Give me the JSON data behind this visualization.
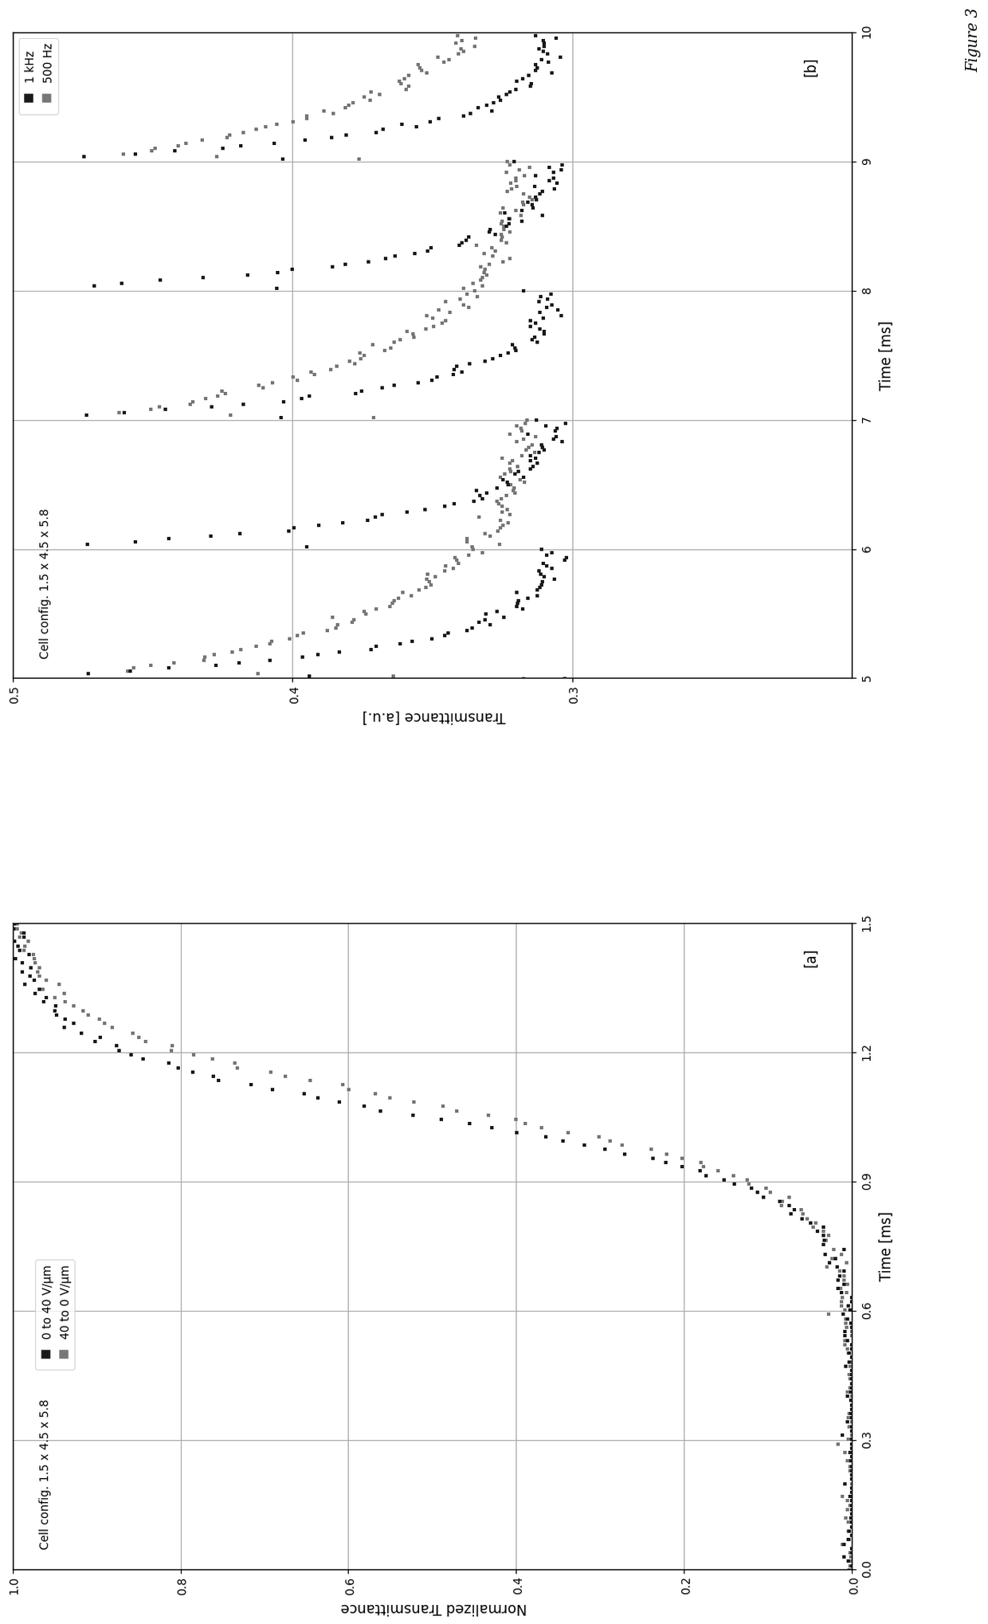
{
  "fig_width": 20.38,
  "fig_height": 12.4,
  "panel_a": {
    "xlabel": "Time [ms]",
    "ylabel": "Normalized Transmittance",
    "xlim": [
      0.0,
      1.5
    ],
    "ylim": [
      0.0,
      1.0
    ],
    "xticks": [
      0.0,
      0.3,
      0.6,
      0.9,
      1.2,
      1.5
    ],
    "yticks": [
      0.0,
      0.2,
      0.4,
      0.6,
      0.8,
      1.0
    ],
    "label": "[a]",
    "cell_config": "Cell config. 1.5 x 4.5 x 5.8",
    "legend_entries": [
      "0 to 40 V/µm",
      "40 to 0 V/µm"
    ],
    "color_dark": "#1a1a1a",
    "color_gray": "#777777"
  },
  "panel_b": {
    "xlabel": "Time [ms]",
    "ylabel": "Transmittance [a.u.]",
    "xlim": [
      5.0,
      10.0
    ],
    "ylim": [
      0.2,
      0.5
    ],
    "xticks": [
      5,
      6,
      7,
      8,
      9,
      10
    ],
    "yticks": [
      0.3,
      0.4,
      0.5
    ],
    "ytick_labels": [
      "0.3",
      "0.4",
      "0.5"
    ],
    "label": "[b]",
    "cell_config": "Cell config. 1.5 x 4.5 x 5.8",
    "legend_entries": [
      "1 kHz",
      "500 Hz"
    ],
    "color_dark": "#1a1a1a",
    "color_gray": "#777777"
  },
  "figure_label": "Figure 3",
  "background_color": "#ffffff"
}
